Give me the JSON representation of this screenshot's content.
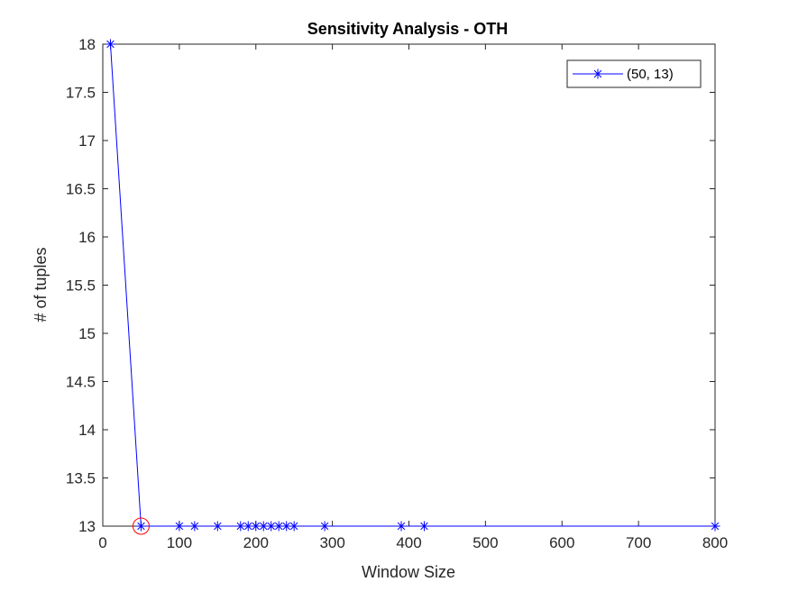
{
  "chart_data": {
    "type": "line",
    "title": "Sensitivity Analysis - OTH",
    "xlabel": "Window Size",
    "ylabel": "# of tuples",
    "xlim": [
      0,
      800
    ],
    "ylim": [
      13,
      18
    ],
    "xticks": [
      "0",
      "100",
      "200",
      "300",
      "400",
      "500",
      "600",
      "700",
      "800"
    ],
    "yticks": [
      "13",
      "13.5",
      "14",
      "14.5",
      "15",
      "15.5",
      "16",
      "16.5",
      "17",
      "17.5",
      "18"
    ],
    "grid": false,
    "legend_position": "top-right",
    "series": [
      {
        "name": "(50, 13)",
        "color": "#0000ff",
        "marker": "asterisk",
        "x": [
          10,
          50,
          100,
          120,
          150,
          180,
          190,
          200,
          210,
          220,
          230,
          240,
          250,
          290,
          390,
          420,
          800
        ],
        "y": [
          18,
          13,
          13,
          13,
          13,
          13,
          13,
          13,
          13,
          13,
          13,
          13,
          13,
          13,
          13,
          13,
          13
        ]
      }
    ],
    "highlight": {
      "x": 50,
      "y": 13,
      "color": "#ff0000",
      "shape": "circle"
    }
  }
}
